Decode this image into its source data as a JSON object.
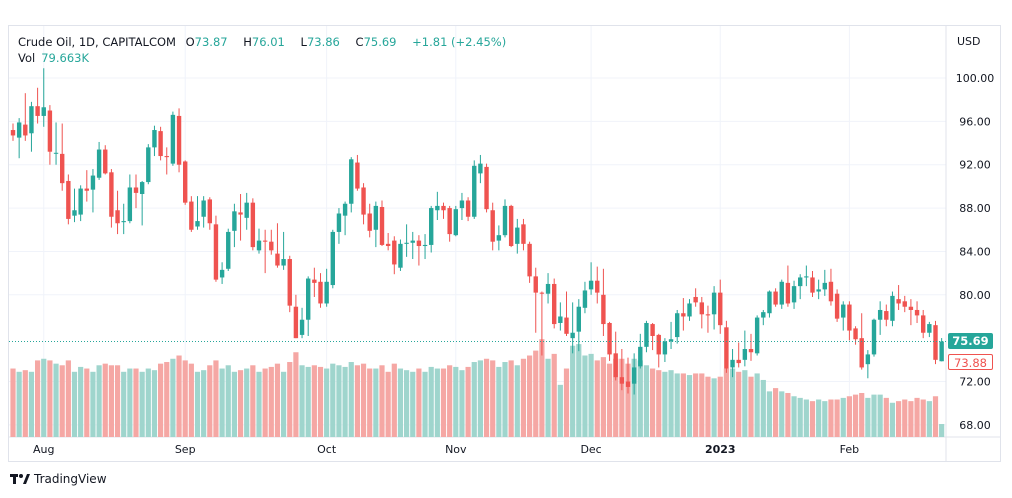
{
  "header": {
    "symbol": "Crude Oil, 1D, CAPITALCOM",
    "open_label": "O",
    "open": "73.87",
    "high_label": "H",
    "high": "76.01",
    "low_label": "L",
    "low": "73.86",
    "close_label": "C",
    "close": "75.69",
    "change": "+1.81 (+2.45%)",
    "vol_label": "Vol",
    "vol": "79.663K"
  },
  "currency": "USD",
  "last_price_label": "75.69",
  "bid_price_label": "73.88",
  "branding": "TradingView",
  "colors": {
    "up": "#26a69a",
    "down": "#ef5350",
    "up_vol": "#9fd5cd",
    "down_vol": "#f5a7a4",
    "grid": "#f0f3fa"
  },
  "chart_data": {
    "type": "candlestick",
    "title": "Crude Oil, 1D, CAPITALCOM",
    "ylabel": "USD",
    "y_ticks": [
      "100.00",
      "96.00",
      "92.00",
      "88.00",
      "84.00",
      "80.00",
      "72.00",
      "68.00"
    ],
    "y_tick_values": [
      100,
      96,
      92,
      88,
      84,
      80,
      72,
      68
    ],
    "ylim": [
      68,
      100
    ],
    "x_ticks": [
      {
        "label": "Aug",
        "index": 5
      },
      {
        "label": "Sep",
        "index": 28
      },
      {
        "label": "Oct",
        "index": 51
      },
      {
        "label": "Nov",
        "index": 72
      },
      {
        "label": "Dec",
        "index": 94
      },
      {
        "label": "2023",
        "index": 115
      },
      {
        "label": "Feb",
        "index": 136
      }
    ],
    "last_price": 75.69,
    "bid_price": 73.88,
    "columns": [
      "open",
      "high",
      "low",
      "close",
      "volume_k"
    ],
    "candles": [
      [
        95.2,
        95.8,
        94.2,
        94.7,
        420
      ],
      [
        94.5,
        96.3,
        92.6,
        95.9,
        400
      ],
      [
        95.7,
        98.6,
        94.2,
        94.7,
        410
      ],
      [
        94.9,
        97.8,
        93.2,
        97.4,
        400
      ],
      [
        97.4,
        99.1,
        95.8,
        96.5,
        470
      ],
      [
        96.5,
        100.9,
        95.5,
        97.3,
        480
      ],
      [
        97.0,
        97.5,
        92.0,
        93.2,
        470
      ],
      [
        93.1,
        95.9,
        92.0,
        93.1,
        450
      ],
      [
        93.0,
        95.8,
        89.6,
        90.3,
        440
      ],
      [
        90.5,
        91.1,
        86.5,
        87.0,
        470
      ],
      [
        87.3,
        89.8,
        86.7,
        87.8,
        400
      ],
      [
        87.4,
        90.1,
        86.8,
        89.8,
        430
      ],
      [
        89.8,
        91.5,
        88.6,
        89.6,
        420
      ],
      [
        89.7,
        91.6,
        87.6,
        91.0,
        400
      ],
      [
        90.8,
        94.1,
        90.6,
        93.4,
        440
      ],
      [
        93.4,
        93.8,
        91.1,
        91.2,
        450
      ],
      [
        91.3,
        91.6,
        86.2,
        87.2,
        440
      ],
      [
        87.8,
        89.6,
        85.6,
        86.6,
        440
      ],
      [
        86.7,
        88.4,
        85.6,
        86.8,
        400
      ],
      [
        86.8,
        91.1,
        86.6,
        89.9,
        420
      ],
      [
        89.9,
        91.1,
        88.0,
        89.4,
        420
      ],
      [
        89.3,
        90.5,
        86.4,
        90.4,
        400
      ],
      [
        90.4,
        93.9,
        90.2,
        93.6,
        420
      ],
      [
        93.6,
        95.6,
        92.8,
        95.2,
        410
      ],
      [
        95.1,
        95.5,
        92.4,
        92.8,
        450
      ],
      [
        92.8,
        93.6,
        91.1,
        92.7,
        460
      ],
      [
        92.1,
        96.9,
        91.9,
        96.6,
        480
      ],
      [
        96.5,
        97.2,
        91.3,
        92.0,
        500
      ],
      [
        92.3,
        92.4,
        88.3,
        88.5,
        470
      ],
      [
        88.6,
        89.1,
        85.8,
        86.0,
        450
      ],
      [
        86.3,
        89.1,
        86.0,
        86.8,
        400
      ],
      [
        87.2,
        89.1,
        86.2,
        88.7,
        410
      ],
      [
        88.8,
        89.0,
        86.0,
        86.6,
        440
      ],
      [
        86.5,
        87.3,
        81.2,
        81.4,
        470
      ],
      [
        81.6,
        83.0,
        81.0,
        82.3,
        420
      ],
      [
        82.4,
        86.1,
        82.2,
        85.8,
        440
      ],
      [
        85.9,
        88.4,
        84.4,
        87.7,
        400
      ],
      [
        87.6,
        89.3,
        85.0,
        87.4,
        410
      ],
      [
        87.1,
        89.4,
        86.0,
        88.5,
        420
      ],
      [
        88.5,
        88.9,
        84.1,
        84.4,
        440
      ],
      [
        84.1,
        86.1,
        83.8,
        85.0,
        400
      ],
      [
        85.0,
        86.0,
        82.0,
        84.9,
        420
      ],
      [
        84.9,
        86.0,
        83.7,
        84.1,
        430
      ],
      [
        83.8,
        86.6,
        82.5,
        82.7,
        450
      ],
      [
        82.7,
        85.8,
        82.3,
        83.3,
        400
      ],
      [
        83.3,
        83.6,
        78.4,
        79.0,
        460
      ],
      [
        78.9,
        80.0,
        76.0,
        76.0,
        520
      ],
      [
        76.3,
        78.8,
        76.0,
        77.7,
        440
      ],
      [
        77.7,
        81.7,
        76.2,
        81.5,
        430
      ],
      [
        81.4,
        82.5,
        79.8,
        81.1,
        440
      ],
      [
        81.2,
        82.0,
        78.8,
        79.2,
        430
      ],
      [
        79.2,
        82.4,
        78.9,
        81.2,
        420
      ],
      [
        80.9,
        86.0,
        80.6,
        85.8,
        450
      ],
      [
        85.8,
        88.0,
        84.7,
        87.5,
        440
      ],
      [
        87.3,
        88.6,
        85.5,
        88.4,
        430
      ],
      [
        88.4,
        92.7,
        87.6,
        92.5,
        460
      ],
      [
        92.2,
        92.9,
        89.6,
        89.8,
        440
      ],
      [
        89.9,
        90.3,
        86.5,
        87.4,
        450
      ],
      [
        87.5,
        88.4,
        85.3,
        85.9,
        420
      ],
      [
        86.0,
        88.6,
        84.4,
        88.2,
        420
      ],
      [
        88.1,
        88.7,
        84.5,
        84.6,
        440
      ],
      [
        84.7,
        85.7,
        84.1,
        84.5,
        400
      ],
      [
        85.0,
        85.4,
        81.9,
        82.8,
        450
      ],
      [
        82.5,
        85.1,
        82.2,
        84.7,
        420
      ],
      [
        84.7,
        86.5,
        83.5,
        84.8,
        410
      ],
      [
        84.8,
        85.8,
        83.3,
        85.0,
        400
      ],
      [
        85.0,
        85.5,
        82.7,
        84.5,
        420
      ],
      [
        84.5,
        85.6,
        83.3,
        84.6,
        400
      ],
      [
        84.6,
        88.2,
        83.9,
        88.0,
        430
      ],
      [
        87.8,
        89.5,
        86.9,
        88.2,
        420
      ],
      [
        88.2,
        88.5,
        87.0,
        87.8,
        420
      ],
      [
        88.0,
        88.2,
        84.9,
        85.6,
        440
      ],
      [
        85.5,
        88.2,
        85.4,
        87.9,
        430
      ],
      [
        88.0,
        89.4,
        86.9,
        88.7,
        410
      ],
      [
        88.7,
        89.0,
        86.8,
        87.2,
        430
      ],
      [
        87.2,
        92.4,
        87.0,
        91.9,
        460
      ],
      [
        91.2,
        92.9,
        90.3,
        92.1,
        470
      ],
      [
        91.8,
        92.1,
        87.6,
        87.9,
        480
      ],
      [
        87.8,
        88.5,
        84.1,
        84.9,
        470
      ],
      [
        85.0,
        86.4,
        84.1,
        85.5,
        430
      ],
      [
        85.5,
        88.8,
        85.3,
        88.2,
        460
      ],
      [
        88.2,
        88.3,
        84.4,
        84.5,
        470
      ],
      [
        84.7,
        87.0,
        83.8,
        86.2,
        440
      ],
      [
        86.5,
        87.0,
        84.1,
        84.7,
        480
      ],
      [
        84.7,
        84.9,
        81.1,
        81.7,
        500
      ],
      [
        81.7,
        82.5,
        76.5,
        80.2,
        530
      ],
      [
        80.2,
        80.3,
        74.4,
        80.1,
        600
      ],
      [
        80.1,
        82.0,
        79.2,
        81.0,
        480
      ],
      [
        81.0,
        81.5,
        76.9,
        77.3,
        510
      ],
      [
        77.4,
        79.3,
        76.7,
        78.0,
        320
      ],
      [
        77.9,
        80.3,
        76.2,
        76.4,
        420
      ],
      [
        76.0,
        79.3,
        74.6,
        76.5,
        560
      ],
      [
        76.6,
        79.6,
        74.8,
        78.9,
        570
      ],
      [
        78.8,
        81.2,
        78.3,
        80.4,
        500
      ],
      [
        80.5,
        83.0,
        80.0,
        81.3,
        510
      ],
      [
        81.3,
        82.6,
        79.2,
        80.2,
        470
      ],
      [
        80.0,
        82.4,
        76.2,
        77.3,
        490
      ],
      [
        77.4,
        77.5,
        73.9,
        74.5,
        450
      ],
      [
        74.6,
        76.6,
        72.1,
        72.4,
        480
      ],
      [
        72.4,
        75.0,
        71.2,
        71.8,
        480
      ],
      [
        72.0,
        74.2,
        70.9,
        71.5,
        450
      ],
      [
        71.8,
        74.6,
        70.8,
        73.3,
        480
      ],
      [
        73.4,
        76.4,
        73.2,
        75.2,
        470
      ],
      [
        75.2,
        77.6,
        74.7,
        77.4,
        440
      ],
      [
        77.3,
        77.4,
        74.9,
        76.2,
        420
      ],
      [
        76.3,
        76.4,
        73.3,
        74.5,
        410
      ],
      [
        74.5,
        76.0,
        73.8,
        75.7,
        400
      ],
      [
        75.7,
        77.5,
        75.0,
        75.9,
        410
      ],
      [
        76.1,
        78.6,
        75.5,
        78.3,
        390
      ],
      [
        78.3,
        79.7,
        76.7,
        78.0,
        390
      ],
      [
        78.0,
        79.6,
        77.6,
        79.2,
        380
      ],
      [
        79.8,
        80.6,
        78.9,
        79.3,
        390
      ],
      [
        79.3,
        79.8,
        76.9,
        78.2,
        390
      ],
      [
        78.2,
        79.0,
        76.5,
        78.1,
        370
      ],
      [
        78.2,
        80.8,
        76.8,
        80.2,
        360
      ],
      [
        80.2,
        81.4,
        76.4,
        77.2,
        370
      ],
      [
        77.0,
        77.6,
        72.8,
        73.2,
        420
      ],
      [
        73.3,
        75.0,
        72.4,
        74.0,
        420
      ],
      [
        74.0,
        75.6,
        73.3,
        73.7,
        400
      ],
      [
        74.0,
        76.7,
        73.4,
        75.0,
        410
      ],
      [
        75.0,
        76.4,
        73.9,
        74.7,
        370
      ],
      [
        74.6,
        78.1,
        74.4,
        77.9,
        390
      ],
      [
        77.9,
        78.6,
        77.2,
        78.4,
        350
      ],
      [
        78.3,
        80.4,
        77.9,
        80.3,
        280
      ],
      [
        80.3,
        80.6,
        78.9,
        79.1,
        300
      ],
      [
        79.1,
        81.4,
        78.7,
        81.2,
        280
      ],
      [
        81.1,
        82.7,
        78.9,
        79.2,
        270
      ],
      [
        79.3,
        81.3,
        78.7,
        80.8,
        250
      ],
      [
        80.8,
        81.9,
        79.6,
        81.6,
        240
      ],
      [
        81.6,
        82.7,
        80.8,
        81.7,
        230
      ],
      [
        81.6,
        82.2,
        79.8,
        80.2,
        220
      ],
      [
        80.3,
        81.4,
        79.6,
        80.5,
        230
      ],
      [
        80.5,
        82.3,
        79.9,
        81.1,
        220
      ],
      [
        81.2,
        82.4,
        79.0,
        79.4,
        230
      ],
      [
        80.1,
        80.5,
        77.5,
        77.8,
        230
      ],
      [
        77.9,
        79.4,
        76.7,
        79.1,
        240
      ],
      [
        79.1,
        79.4,
        75.8,
        76.7,
        250
      ],
      [
        76.9,
        77.1,
        75.4,
        75.9,
        260
      ],
      [
        76.0,
        78.3,
        73.1,
        73.3,
        270
      ],
      [
        73.6,
        74.9,
        72.3,
        74.5,
        240
      ],
      [
        74.5,
        77.8,
        74.3,
        77.7,
        260
      ],
      [
        77.7,
        79.4,
        76.3,
        78.6,
        260
      ],
      [
        78.5,
        79.1,
        77.1,
        77.7,
        240
      ],
      [
        77.6,
        80.3,
        77.1,
        79.9,
        210
      ],
      [
        79.6,
        80.9,
        78.6,
        79.2,
        220
      ],
      [
        79.4,
        79.9,
        78.4,
        78.9,
        230
      ],
      [
        78.9,
        79.6,
        77.2,
        78.6,
        220
      ],
      [
        78.6,
        79.4,
        77.4,
        78.1,
        240
      ],
      [
        78.1,
        78.6,
        76.0,
        76.5,
        230
      ],
      [
        76.5,
        77.5,
        76.1,
        77.3,
        220
      ],
      [
        77.2,
        77.6,
        73.6,
        74.0,
        250
      ],
      [
        73.87,
        76.01,
        73.86,
        75.69,
        79.663
      ]
    ]
  }
}
